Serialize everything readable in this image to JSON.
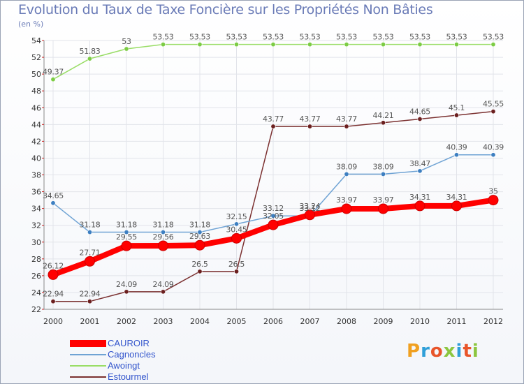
{
  "title": "Evolution du Taux de Taxe Foncière sur les Propriétés Non Bâties",
  "subtitle": "(en %)",
  "logo": {
    "text": "Proxiti",
    "colors": [
      "#f0a020",
      "#2f9fd8",
      "#e8552a",
      "#8cc63f",
      "#2f9fd8",
      "#e8552a",
      "#8cc63f"
    ]
  },
  "chart_data": {
    "type": "line",
    "title": "Evolution du Taux de Taxe Foncière sur les Propriétés Non Bâties",
    "ylabel": "(en %)",
    "xlabel": "",
    "categories": [
      "2000",
      "2001",
      "2002",
      "2003",
      "2004",
      "2005",
      "2006",
      "2007",
      "2008",
      "2009",
      "2010",
      "2011",
      "2012"
    ],
    "ylim": [
      22,
      54
    ],
    "yticks": [
      22,
      24,
      26,
      28,
      30,
      32,
      34,
      36,
      38,
      40,
      42,
      44,
      46,
      48,
      50,
      52,
      54
    ],
    "grid": true,
    "legend_position": "bottom-left",
    "series": [
      {
        "name": "CAUROIR",
        "color": "#ff0000",
        "label_color": "#555555",
        "emphasis": true,
        "values": [
          26.12,
          27.71,
          29.55,
          29.56,
          29.63,
          30.45,
          32.05,
          33.24,
          33.97,
          33.97,
          34.31,
          34.31,
          35
        ],
        "labels": [
          "26.12",
          "27.71",
          "29.55",
          "29.56",
          "29.63",
          "30.45",
          "32.05",
          "33.24",
          "33.97",
          "33.97",
          "34.31",
          "34.31",
          "35"
        ]
      },
      {
        "name": "Cagnoncles",
        "color": "#6fa3d4",
        "marker_color": "#3d7fc1",
        "label_color": "#555555",
        "values": [
          34.65,
          31.18,
          31.18,
          31.18,
          31.18,
          32.15,
          33.12,
          33.12,
          38.09,
          38.09,
          38.47,
          40.39,
          40.39
        ],
        "labels": [
          "34.65",
          "31.18",
          "31.18",
          "31.18",
          "31.18",
          "32.15",
          "33.12",
          "33.12",
          "38.09",
          "38.09",
          "38.47",
          "40.39",
          "40.39"
        ]
      },
      {
        "name": "Awoingt",
        "color": "#99dd66",
        "marker_color": "#7ccc44",
        "label_color": "#555555",
        "values": [
          49.37,
          51.83,
          53,
          53.53,
          53.53,
          53.53,
          53.53,
          53.53,
          53.53,
          53.53,
          53.53,
          53.53,
          53.53
        ],
        "labels": [
          "49.37",
          "51.83",
          "53",
          "53.53",
          "53.53",
          "53.53",
          "53.53",
          "53.53",
          "53.53",
          "53.53",
          "53.53",
          "53.53",
          "53.53"
        ]
      },
      {
        "name": "Estourmel",
        "color": "#7b3030",
        "marker_color": "#6b1f1f",
        "label_color": "#555555",
        "values": [
          22.94,
          22.94,
          24.09,
          24.09,
          26.5,
          26.5,
          43.77,
          43.77,
          43.77,
          44.21,
          44.65,
          45.1,
          45.55
        ],
        "labels": [
          "22.94",
          "22.94",
          "24.09",
          "24.09",
          "26.5",
          "26.5",
          "43.77",
          "43.77",
          "43.77",
          "44.21",
          "44.65",
          "45.1",
          "45.55"
        ]
      }
    ]
  }
}
